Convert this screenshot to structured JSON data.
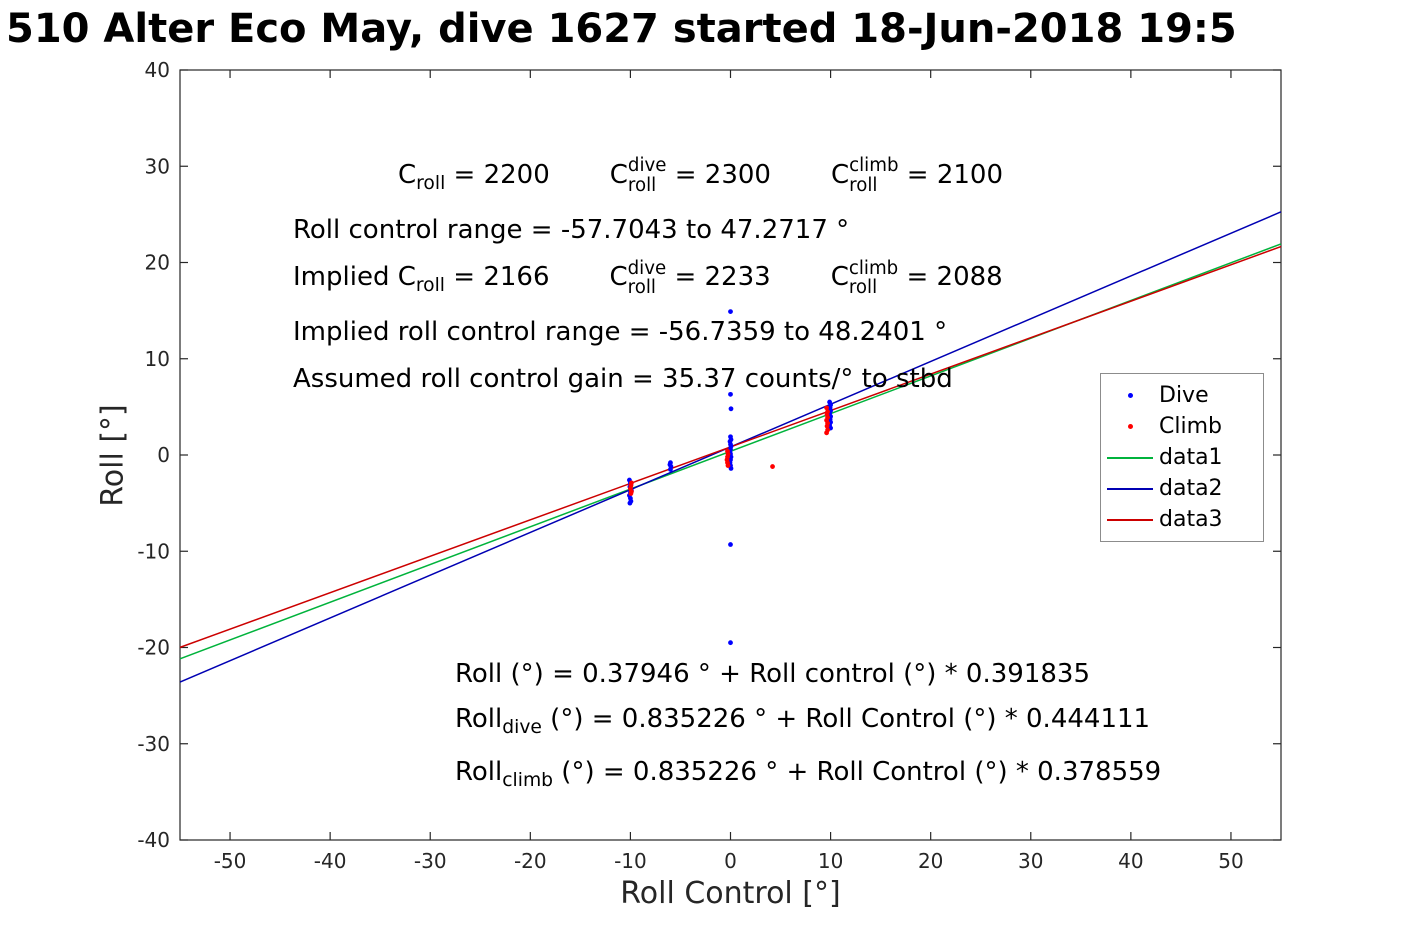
{
  "chart_data": {
    "type": "scatter",
    "title": "510 Alter Eco May, dive 1627 started 18-Jun-2018 19:5",
    "xlabel": "Roll Control [°]",
    "ylabel": "Roll [°]",
    "xlim": [
      -55,
      55
    ],
    "ylim": [
      -40,
      40
    ],
    "xticks": [
      -50,
      -40,
      -30,
      -20,
      -10,
      0,
      10,
      20,
      30,
      40,
      50
    ],
    "yticks": [
      -40,
      -30,
      -20,
      -10,
      0,
      10,
      20,
      30,
      40
    ],
    "grid": false,
    "legend_position": "northeast",
    "series": [
      {
        "name": "Dive",
        "type": "scatter",
        "color": "#0000ff",
        "points": [
          [
            -10.1,
            -2.6
          ],
          [
            -10,
            -2.9
          ],
          [
            -9.95,
            -3.1
          ],
          [
            -10.05,
            -3.3
          ],
          [
            -10,
            -3.5
          ],
          [
            -9.9,
            -3.7
          ],
          [
            -10,
            -3.9
          ],
          [
            -10.1,
            -4.2
          ],
          [
            -10,
            -4.5
          ],
          [
            -9.95,
            -4.8
          ],
          [
            -10.05,
            -5
          ],
          [
            -6,
            -0.8
          ],
          [
            -6.05,
            -1
          ],
          [
            -5.95,
            -1.2
          ],
          [
            -6,
            -1.5
          ],
          [
            0,
            14.9
          ],
          [
            0,
            6.3
          ],
          [
            0.05,
            4.8
          ],
          [
            0,
            1.9
          ],
          [
            0.05,
            1.6
          ],
          [
            -0.05,
            1.4
          ],
          [
            0,
            1.1
          ],
          [
            0.05,
            0.9
          ],
          [
            0,
            0.6
          ],
          [
            -0.05,
            0.3
          ],
          [
            0,
            0.1
          ],
          [
            0.05,
            -0.2
          ],
          [
            0,
            -0.5
          ],
          [
            -0.05,
            -0.8
          ],
          [
            0,
            -1.1
          ],
          [
            0.05,
            -1.4
          ],
          [
            0,
            -9.3
          ],
          [
            0,
            -19.5
          ],
          [
            9.9,
            5.5
          ],
          [
            10,
            5.2
          ],
          [
            9.95,
            4.9
          ],
          [
            10,
            4.6
          ],
          [
            9.9,
            4.3
          ],
          [
            10,
            4
          ],
          [
            9.95,
            3.7
          ],
          [
            10,
            3.4
          ],
          [
            9.9,
            3.1
          ],
          [
            10,
            2.8
          ]
        ]
      },
      {
        "name": "Climb",
        "type": "scatter",
        "color": "#ff0000",
        "points": [
          [
            -9.9,
            -2.9
          ],
          [
            -9.95,
            -3.2
          ],
          [
            -10,
            -3.5
          ],
          [
            -9.9,
            -3.8
          ],
          [
            -9.95,
            -4
          ],
          [
            -0.3,
            0.4
          ],
          [
            -0.25,
            0.1
          ],
          [
            -0.3,
            -0.2
          ],
          [
            -0.35,
            -0.5
          ],
          [
            -0.3,
            -0.8
          ],
          [
            -0.25,
            -1.1
          ],
          [
            4.2,
            -1.2
          ],
          [
            9.6,
            4.9
          ],
          [
            9.7,
            4.5
          ],
          [
            9.65,
            4.2
          ],
          [
            9.7,
            3.9
          ],
          [
            9.6,
            3.6
          ],
          [
            9.7,
            3.3
          ],
          [
            9.65,
            3
          ],
          [
            9.7,
            2.6
          ],
          [
            9.6,
            2.3
          ]
        ]
      },
      {
        "name": "data1",
        "type": "line",
        "color": "#00b33c",
        "intercept": 0.37946,
        "slope": 0.391835
      },
      {
        "name": "data2",
        "type": "line",
        "color": "#0000b3",
        "intercept": 0.835226,
        "slope": 0.444111
      },
      {
        "name": "data3",
        "type": "line",
        "color": "#cc0000",
        "intercept": 0.835226,
        "slope": 0.378559
      }
    ],
    "upper_annotations": [
      [
        {
          "gap": 105
        },
        {
          "t": "C"
        },
        {
          "sub": "roll"
        },
        {
          "t": " = 2200"
        },
        {
          "gap": 60
        },
        {
          "t": "C"
        },
        {
          "stack": [
            "dive",
            "roll"
          ]
        },
        {
          "t": " = 2300"
        },
        {
          "gap": 60
        },
        {
          "t": "C"
        },
        {
          "stack": [
            "climb",
            "roll"
          ]
        },
        {
          "t": " = 2100"
        }
      ],
      [
        {
          "t": "Roll control range = -57.7043 to 47.2717 °"
        }
      ],
      [
        {
          "t": "Implied C"
        },
        {
          "sub": "roll"
        },
        {
          "t": " = 2166"
        },
        {
          "gap": 60
        },
        {
          "t": "C"
        },
        {
          "stack": [
            "dive",
            "roll"
          ]
        },
        {
          "t": " = 2233"
        },
        {
          "gap": 60
        },
        {
          "t": "C"
        },
        {
          "stack": [
            "climb",
            "roll"
          ]
        },
        {
          "t": " = 2088"
        }
      ],
      [
        {
          "t": "Implied roll control range = -56.7359 to 48.2401 °"
        }
      ],
      [
        {
          "t": "Assumed roll control gain = 35.37 counts/° to stbd"
        }
      ]
    ],
    "lower_annotations": [
      [
        {
          "t": "Roll (°) = 0.37946 ° + Roll control (°) * 0.391835"
        }
      ],
      [
        {
          "t": "Roll"
        },
        {
          "sub": "dive"
        },
        {
          "t": " (°) = 0.835226 ° + Roll Control (°) * 0.444111"
        }
      ],
      [
        {
          "t": "Roll"
        },
        {
          "sub": "climb"
        },
        {
          "t": " (°) = 0.835226 ° + Roll Control (°) * 0.378559"
        }
      ]
    ],
    "legend_entries": [
      "Dive",
      "Climb",
      "data1",
      "data2",
      "data3"
    ]
  }
}
